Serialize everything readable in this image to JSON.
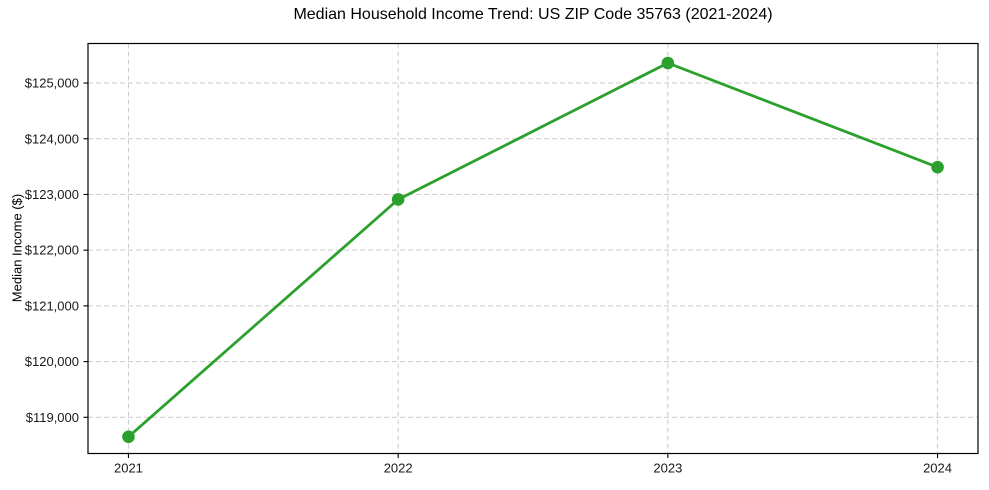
{
  "chart_data": {
    "type": "line",
    "title": "Median Household Income Trend: US ZIP Code 35763 (2021-2024)",
    "xlabel": "",
    "ylabel": "Median Income ($)",
    "categories": [
      "2021",
      "2022",
      "2023",
      "2024"
    ],
    "series": [
      {
        "name": "Median Income",
        "color": "#2ca02c",
        "values": [
          118650,
          122910,
          125360,
          123490
        ]
      }
    ],
    "x_tick_labels": [
      "2021",
      "2022",
      "2023",
      "2024"
    ],
    "y_ticks": [
      119000,
      120000,
      121000,
      122000,
      123000,
      124000,
      125000
    ],
    "y_tick_labels": [
      "$119,000",
      "$120,000",
      "$121,000",
      "$122,000",
      "$123,000",
      "$124,000",
      "$125,000"
    ],
    "ylim": [
      118350,
      125710
    ],
    "grid": true,
    "grid_line_style": "dashed",
    "legend_position": "none",
    "marker": "circle",
    "styles": {
      "line_color": "#2ca02c",
      "marker_color": "#2ca02c",
      "grid_color": "#cccccc",
      "spine_color": "#000000",
      "text_color": "#1a1a1a",
      "background": "#ffffff"
    }
  }
}
